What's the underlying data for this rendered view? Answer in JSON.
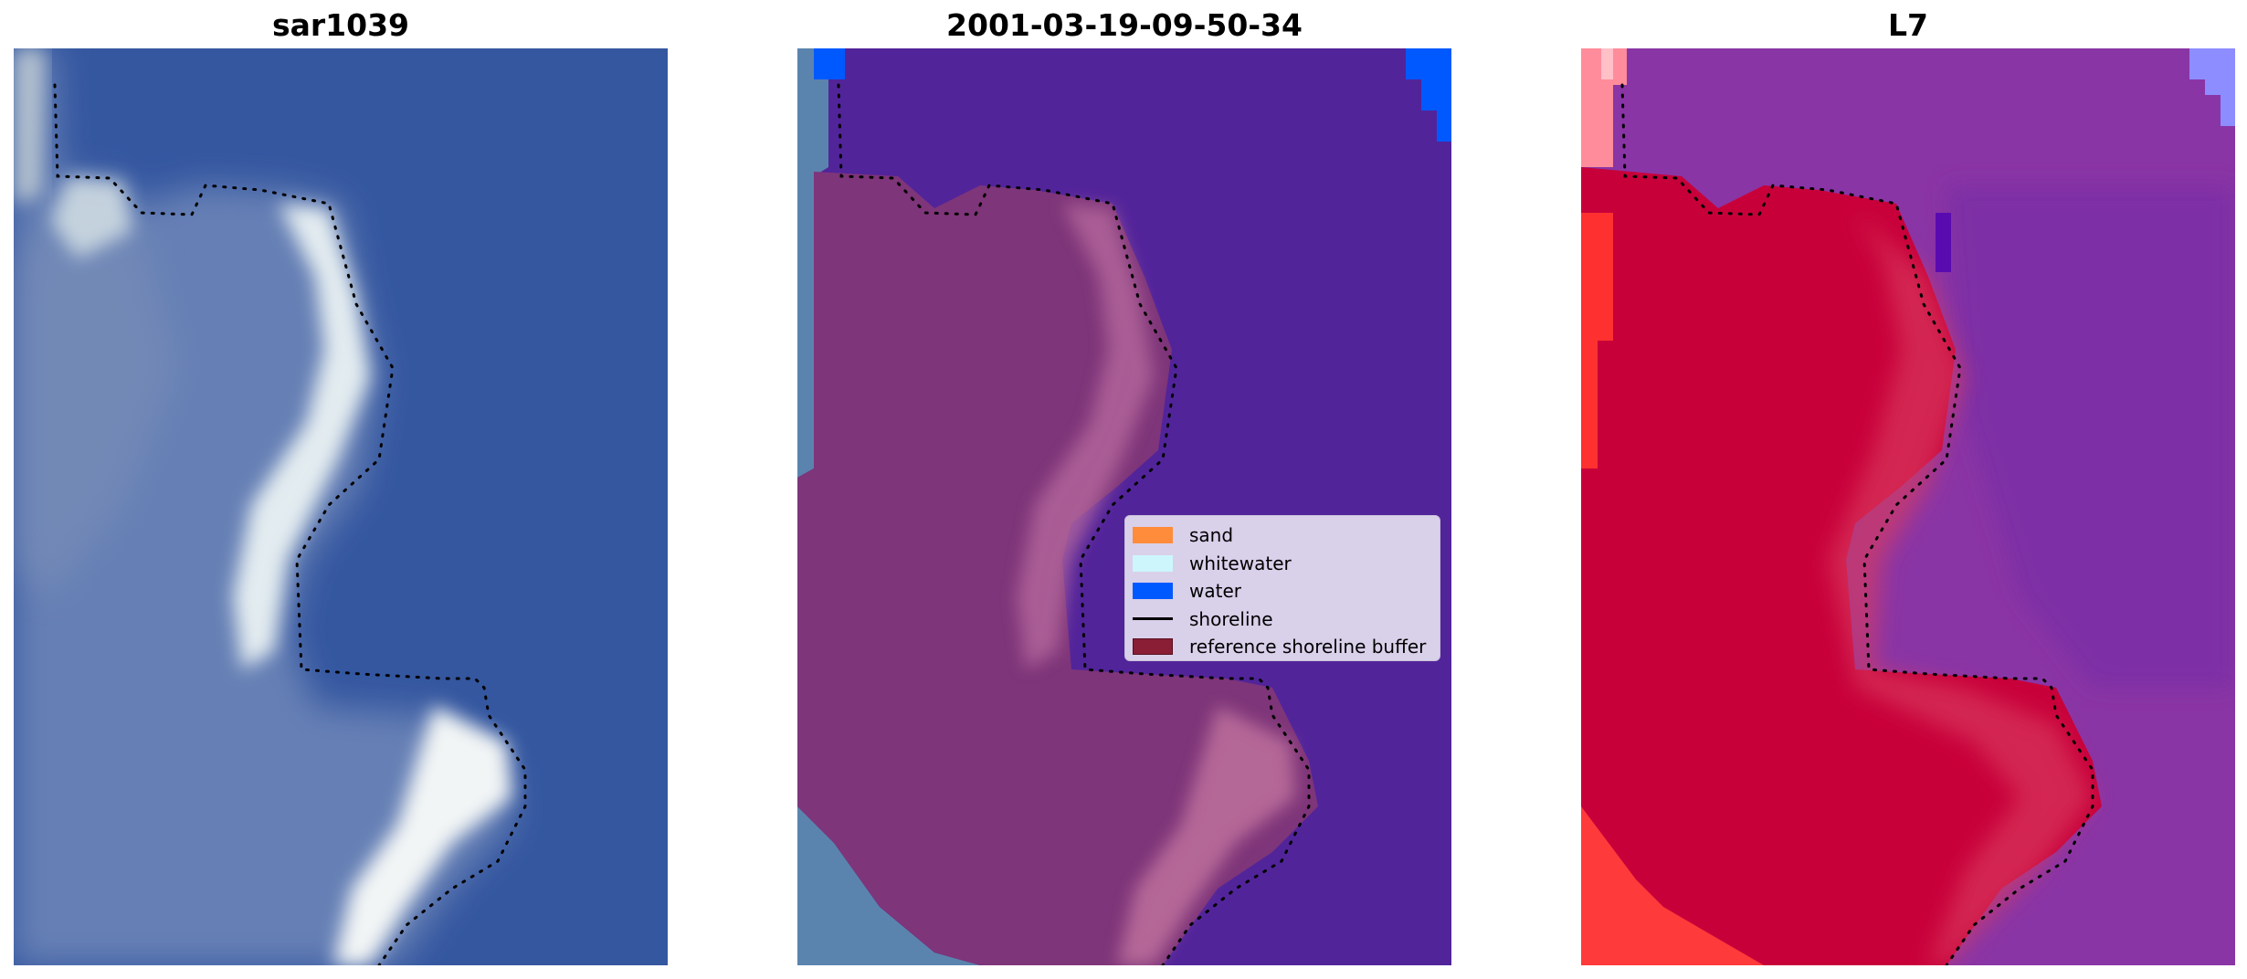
{
  "panels": [
    {
      "title": "sar1039",
      "image": "rgb-satellite-composite"
    },
    {
      "title": "2001-03-19-09-50-34",
      "image": "classified-overlay"
    },
    {
      "title": "L7",
      "image": "index-heatmap"
    }
  ],
  "legend": {
    "items": [
      {
        "label": "sand",
        "color": "#ff8c3a",
        "kind": "patch"
      },
      {
        "label": "whitewater",
        "color": "#ccf6fc",
        "kind": "patch"
      },
      {
        "label": "water",
        "color": "#0059ff",
        "kind": "patch"
      },
      {
        "label": "shoreline",
        "color": "#000000",
        "kind": "line"
      },
      {
        "label": "reference shoreline buffer",
        "color": "#8a1e34",
        "kind": "patch"
      }
    ]
  },
  "colors": {
    "water_rgb": "#3557a0",
    "land_rgb": "#6680b5",
    "whitewater_rgb": "#e3ecf0",
    "class_water": "#52249a",
    "buffer_overlay": "#8a3a78",
    "index_land": "#c8003a",
    "index_water": "#7a2ea5",
    "index_high": "#ff3030",
    "index_low": "#8d8dff"
  }
}
